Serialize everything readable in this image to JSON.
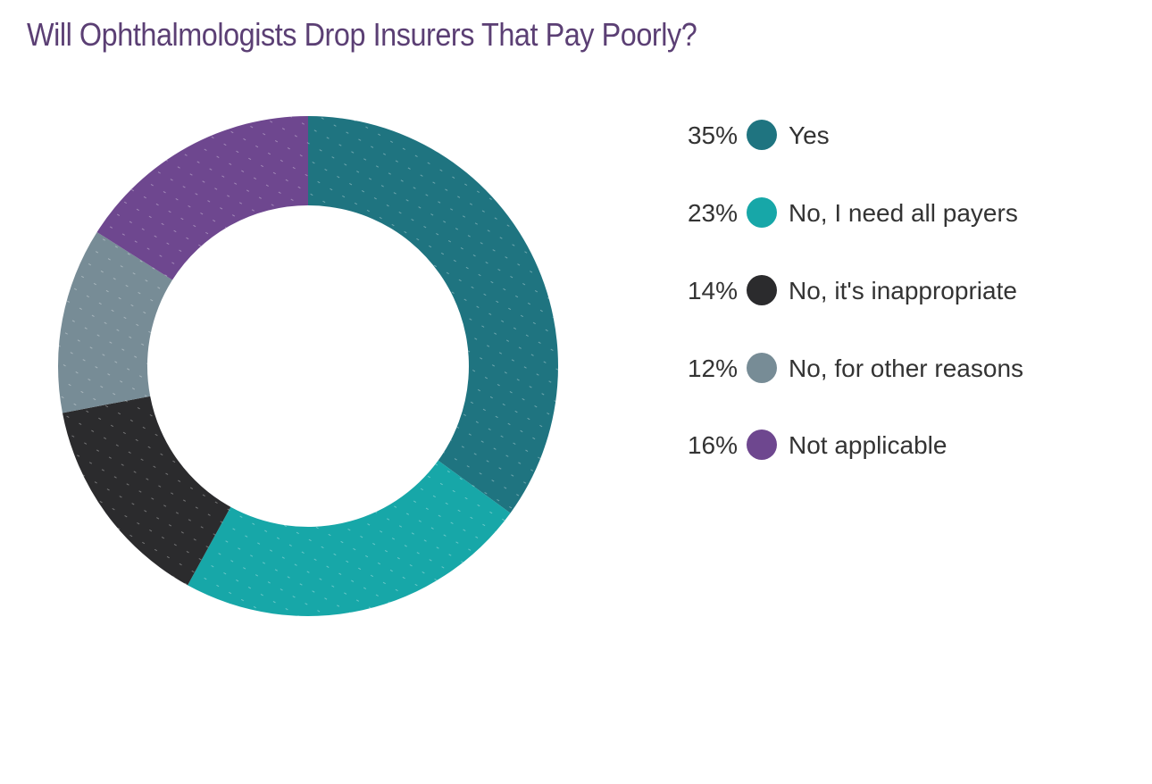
{
  "chart_data": {
    "type": "pie",
    "variant": "donut",
    "title": "Will Ophthalmologists Drop Insurers That Pay Poorly?",
    "legend_position": "right",
    "slices": [
      {
        "label": "Yes",
        "value": 35,
        "value_label": "35%",
        "color": "#1f7480"
      },
      {
        "label": "No, I need all payers",
        "value": 23,
        "value_label": "23%",
        "color": "#17a7a8"
      },
      {
        "label": "No, it's inappropriate",
        "value": 14,
        "value_label": "14%",
        "color": "#2b2b2d"
      },
      {
        "label": "No, for other reasons",
        "value": 12,
        "value_label": "12%",
        "color": "#778c96"
      },
      {
        "label": "Not applicable",
        "value": 16,
        "value_label": "16%",
        "color": "#6e478f"
      }
    ]
  },
  "colors": {
    "title": "#5b3f74",
    "text": "#333333",
    "background": "#ffffff"
  }
}
